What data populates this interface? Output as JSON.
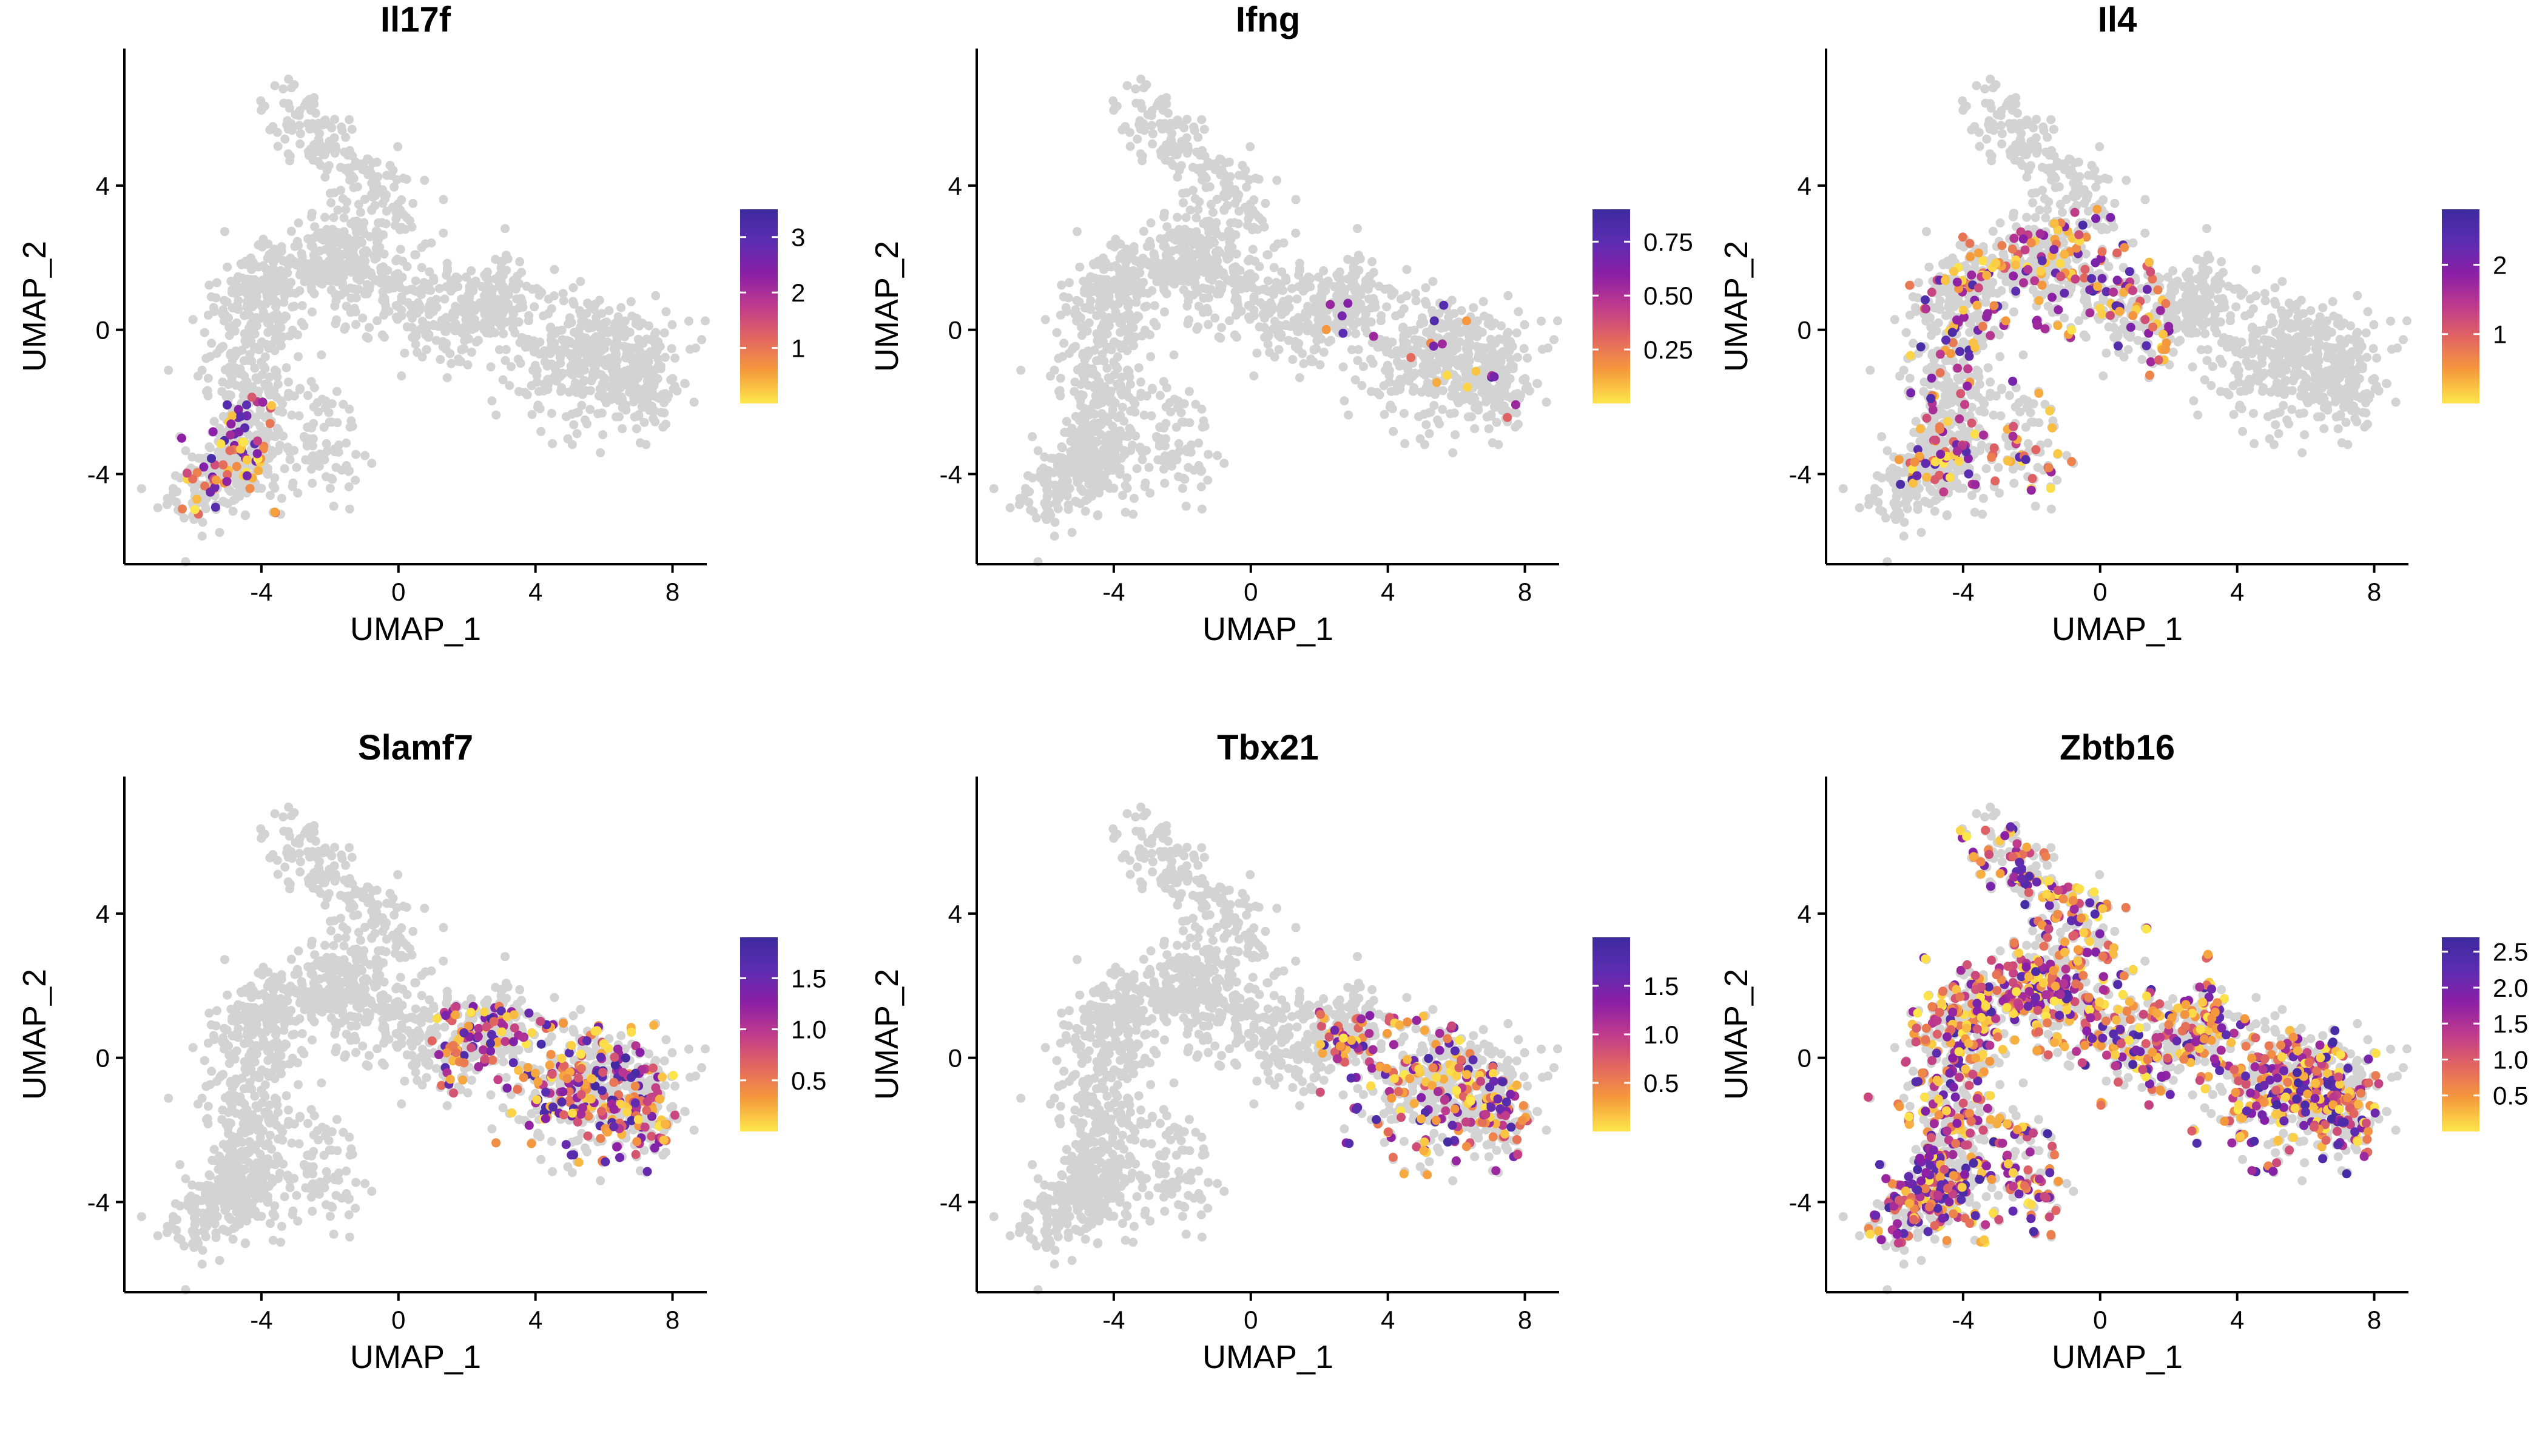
{
  "figure": {
    "gradient_colors": [
      "#fde74b",
      "#f59b3c",
      "#e2675f",
      "#bf3b8c",
      "#8b1fa6",
      "#5b2db0",
      "#3d2a9e"
    ],
    "background_point_color": "#d3d3d3"
  },
  "chart_data": [
    {
      "type": "scatter",
      "title": "Il17f",
      "xlabel": "UMAP_1",
      "ylabel": "UMAP_2",
      "xlim": [
        -8,
        9
      ],
      "ylim": [
        -6.5,
        7.8
      ],
      "xticks": [
        "-4",
        "0",
        "4",
        "8"
      ],
      "yticks": [
        "-4",
        "0",
        "4"
      ],
      "legend": {
        "min": 0,
        "max": 3.5,
        "ticks": [
          "1",
          "2",
          "3"
        ],
        "tick_values": [
          1,
          2,
          3
        ]
      },
      "highlight": {
        "region": "bottom-left",
        "x": [
          -6.5,
          -3.6
        ],
        "y": [
          -5.1,
          -1.8
        ],
        "count": 80,
        "max_value": 3.3
      }
    },
    {
      "type": "scatter",
      "title": "Ifng",
      "xlabel": "UMAP_1",
      "ylabel": "UMAP_2",
      "xlim": [
        -8,
        9
      ],
      "ylim": [
        -6.5,
        7.8
      ],
      "xticks": [
        "-4",
        "0",
        "4",
        "8"
      ],
      "yticks": [
        "-4",
        "0",
        "4"
      ],
      "legend": {
        "min": 0,
        "max": 0.9,
        "ticks": [
          "0.25",
          "0.50",
          "0.75"
        ],
        "tick_values": [
          0.25,
          0.5,
          0.75
        ]
      },
      "highlight": {
        "region": "right-lobe",
        "x": [
          2,
          8
        ],
        "y": [
          -3,
          0.8
        ],
        "count": 22,
        "max_value": 0.85
      }
    },
    {
      "type": "scatter",
      "title": "Il4",
      "xlabel": "UMAP_1",
      "ylabel": "UMAP_2",
      "xlim": [
        -8,
        9
      ],
      "ylim": [
        -6.5,
        7.8
      ],
      "xticks": [
        "-4",
        "0",
        "4",
        "8"
      ],
      "yticks": [
        "-4",
        "0",
        "4"
      ],
      "legend": {
        "min": 0,
        "max": 2.8,
        "ticks": [
          "1",
          "2"
        ],
        "tick_values": [
          1,
          2
        ]
      },
      "highlight": {
        "region": "left-arm",
        "x": [
          -6,
          2
        ],
        "y": [
          -4.5,
          3.5
        ],
        "count": 320,
        "max_value": 2.6
      }
    },
    {
      "type": "scatter",
      "title": "Slamf7",
      "xlabel": "UMAP_1",
      "ylabel": "UMAP_2",
      "xlim": [
        -8,
        9
      ],
      "ylim": [
        -6.5,
        7.8
      ],
      "xticks": [
        "-4",
        "0",
        "4",
        "8"
      ],
      "yticks": [
        "-4",
        "0",
        "4"
      ],
      "legend": {
        "min": 0,
        "max": 1.9,
        "ticks": [
          "0.5",
          "1.0",
          "1.5"
        ],
        "tick_values": [
          0.5,
          1.0,
          1.5
        ]
      },
      "highlight": {
        "region": "right-lobe",
        "x": [
          1,
          8.2
        ],
        "y": [
          -3.3,
          1.5
        ],
        "count": 360,
        "max_value": 1.85
      }
    },
    {
      "type": "scatter",
      "title": "Tbx21",
      "xlabel": "UMAP_1",
      "ylabel": "UMAP_2",
      "xlim": [
        -8,
        9
      ],
      "ylim": [
        -6.5,
        7.8
      ],
      "xticks": [
        "-4",
        "0",
        "4",
        "8"
      ],
      "yticks": [
        "-4",
        "0",
        "4"
      ],
      "legend": {
        "min": 0,
        "max": 2.0,
        "ticks": [
          "0.5",
          "1.0",
          "1.5"
        ],
        "tick_values": [
          0.5,
          1.0,
          1.5
        ]
      },
      "highlight": {
        "region": "right-lobe",
        "x": [
          2,
          8.2
        ],
        "y": [
          -3.3,
          1.2
        ],
        "count": 260,
        "max_value": 1.9
      }
    },
    {
      "type": "scatter",
      "title": "Zbtb16",
      "xlabel": "UMAP_1",
      "ylabel": "UMAP_2",
      "xlim": [
        -8,
        9
      ],
      "ylim": [
        -6.5,
        7.8
      ],
      "xticks": [
        "-4",
        "0",
        "4",
        "8"
      ],
      "yticks": [
        "-4",
        "0",
        "4"
      ],
      "legend": {
        "min": 0,
        "max": 2.7,
        "ticks": [
          "0.5",
          "1.0",
          "1.5",
          "2.0",
          "2.5"
        ],
        "tick_values": [
          0.5,
          1.0,
          1.5,
          2.0,
          2.5
        ]
      },
      "highlight": {
        "region": "whole-embedding",
        "x": [
          -7,
          8.2
        ],
        "y": [
          -5.2,
          6.5
        ],
        "count": 1400,
        "max_value": 2.6
      }
    }
  ]
}
